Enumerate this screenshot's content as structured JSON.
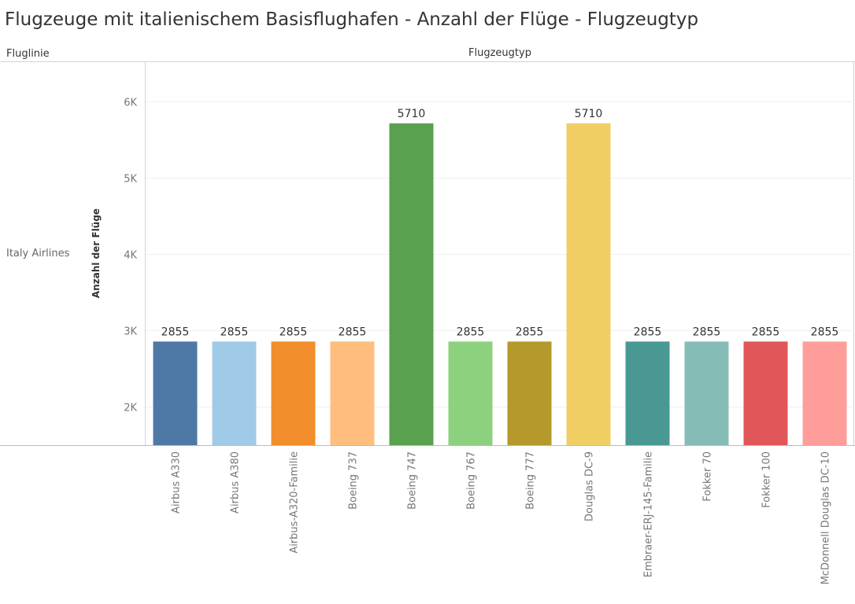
{
  "title": "Flugzeuge mit italienischem Basisflughafen - Anzahl der Flüge - Flugzeugtyp",
  "row_header": "Fluglinie",
  "column_header": "Flugzeugtyp",
  "row_value": "Italy Airlines",
  "chart_data": {
    "type": "bar",
    "title": "Flugzeuge mit italienischem Basisflughafen - Anzahl der Flüge - Flugzeugtyp",
    "xlabel": "Flugzeugtyp",
    "ylabel": "Anzahl der Flüge",
    "categories": [
      "Airbus A330",
      "Airbus A380",
      "Airbus-A320-Familie",
      "Boeing 737",
      "Boeing 747",
      "Boeing 767",
      "Boeing 777",
      "Douglas DC-9",
      "Embraer-ERJ-145-Familie",
      "Fokker 70",
      "Fokker 100",
      "McDonnell Douglas DC-10"
    ],
    "values": [
      2855,
      2855,
      2855,
      2855,
      5710,
      2855,
      2855,
      5710,
      2855,
      2855,
      2855,
      2855
    ],
    "colors": [
      "#4e79a7",
      "#a0cbe8",
      "#f28e2b",
      "#ffbe7d",
      "#59a14f",
      "#8cd17d",
      "#b6992d",
      "#f1ce63",
      "#499894",
      "#86bcb6",
      "#e15759",
      "#ff9d9a"
    ],
    "ylim": [
      1500,
      6500
    ],
    "yticks": [
      2000,
      3000,
      4000,
      5000,
      6000
    ],
    "ytick_labels": [
      "2K",
      "3K",
      "4K",
      "5K",
      "6K"
    ],
    "grid": true,
    "legend": "none"
  }
}
